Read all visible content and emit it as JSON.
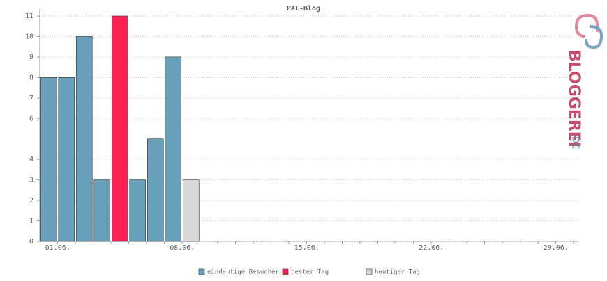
{
  "chart_data": {
    "type": "bar",
    "title": "PAL-Blog",
    "categories": [
      "01.06.",
      null,
      null,
      null,
      null,
      null,
      null,
      "08.06.",
      null,
      null,
      null,
      null,
      null,
      null,
      "15.06.",
      null,
      null,
      null,
      null,
      null,
      null,
      "22.06.",
      null,
      null,
      null,
      null,
      null,
      null,
      "29.06.",
      null
    ],
    "series": [
      {
        "name": "eindeutige Besucher",
        "color": "#6a9fba",
        "values": [
          8,
          8,
          10,
          3,
          null,
          3,
          5,
          9,
          null,
          null,
          null,
          null,
          null,
          null,
          null,
          null,
          null,
          null,
          null,
          null,
          null,
          null,
          null,
          null,
          null,
          null,
          null,
          null,
          null,
          null
        ]
      },
      {
        "name": "bester Tag",
        "color": "#ff2255",
        "values": [
          null,
          null,
          null,
          null,
          11,
          null,
          null,
          null,
          null,
          null,
          null,
          null,
          null,
          null,
          null,
          null,
          null,
          null,
          null,
          null,
          null,
          null,
          null,
          null,
          null,
          null,
          null,
          null,
          null,
          null
        ]
      },
      {
        "name": "heutiger Tag",
        "color": "#d8d8d8",
        "values": [
          null,
          null,
          null,
          null,
          null,
          null,
          null,
          null,
          3,
          null,
          null,
          null,
          null,
          null,
          null,
          null,
          null,
          null,
          null,
          null,
          null,
          null,
          null,
          null,
          null,
          null,
          null,
          null,
          null,
          null
        ]
      }
    ],
    "ylim": [
      0,
      11
    ],
    "yticks": [
      0,
      1,
      2,
      3,
      4,
      6,
      7,
      8,
      9,
      10,
      11
    ],
    "grid": true,
    "logo": "BLOGGEREI",
    "logo_suffix": ".DE"
  }
}
